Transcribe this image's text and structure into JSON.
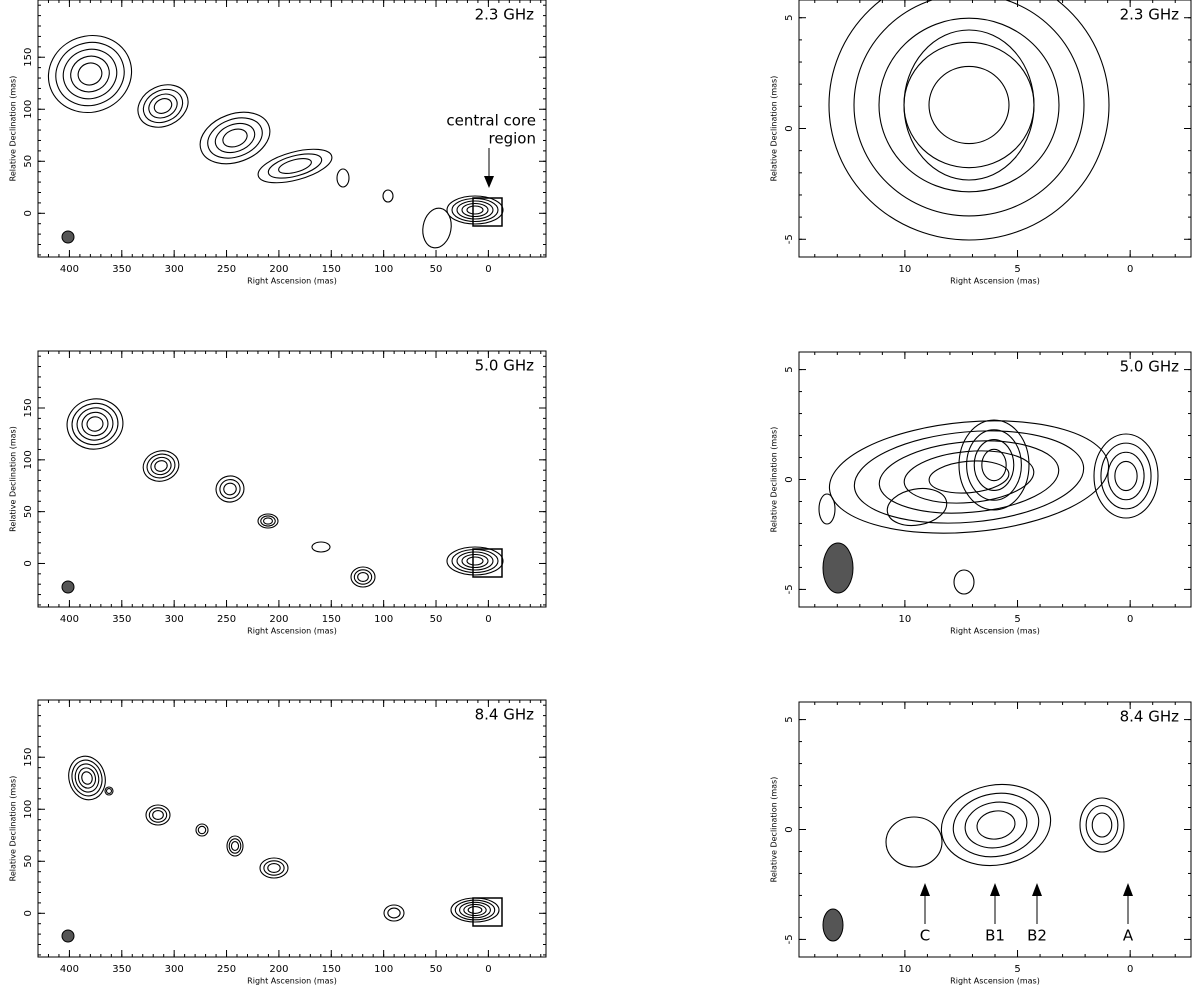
{
  "panels": [
    {
      "label": "2.3 GHz",
      "x_label": "Right Ascension  (mas)",
      "y_label": "Relative Declination  (mas)",
      "xlim": [
        430,
        -55
      ],
      "ylim": [
        -42,
        205
      ],
      "xticks": [
        400,
        350,
        300,
        250,
        200,
        150,
        100,
        50,
        0
      ],
      "yticks": [
        0,
        50,
        100,
        150
      ],
      "annotation": [
        "central core",
        "region"
      ]
    },
    {
      "label": "2.3 GHz",
      "x_label": "Right Ascension  (mas)",
      "y_label": "Relative Declination  (mas)",
      "xlim": [
        14.7,
        -2.7
      ],
      "ylim": [
        -5.8,
        5.8
      ],
      "xticks": [
        10,
        5,
        0
      ],
      "yticks": [
        -5,
        0,
        5
      ]
    },
    {
      "label": "5.0 GHz",
      "x_label": "Right Ascension  (mas)",
      "y_label": "Relative Declination  (mas)",
      "xlim": [
        430,
        -55
      ],
      "ylim": [
        -42,
        205
      ],
      "xticks": [
        400,
        350,
        300,
        250,
        200,
        150,
        100,
        50,
        0
      ],
      "yticks": [
        0,
        50,
        100,
        150
      ]
    },
    {
      "label": "5.0 GHz",
      "x_label": "Right Ascension  (mas)",
      "y_label": "Relative Declination  (mas)",
      "xlim": [
        14.7,
        -2.7
      ],
      "ylim": [
        -5.8,
        5.8
      ],
      "xticks": [
        10,
        5,
        0
      ],
      "yticks": [
        -5,
        0,
        5
      ]
    },
    {
      "label": "8.4 GHz",
      "x_label": "Right Ascension  (mas)",
      "y_label": "Relative Declination  (mas)",
      "xlim": [
        430,
        -55
      ],
      "ylim": [
        -42,
        205
      ],
      "xticks": [
        400,
        350,
        300,
        250,
        200,
        150,
        100,
        50,
        0
      ],
      "yticks": [
        0,
        50,
        100,
        150
      ]
    },
    {
      "label": "8.4 GHz",
      "x_label": "Right Ascension  (mas)",
      "y_label": "Relative Declination  (mas)",
      "xlim": [
        14.7,
        -2.7
      ],
      "ylim": [
        -5.8,
        5.8
      ],
      "xticks": [
        10,
        5,
        0
      ],
      "yticks": [
        -5,
        0,
        5
      ],
      "components": [
        "C",
        "B1",
        "B2",
        "A"
      ]
    }
  ]
}
